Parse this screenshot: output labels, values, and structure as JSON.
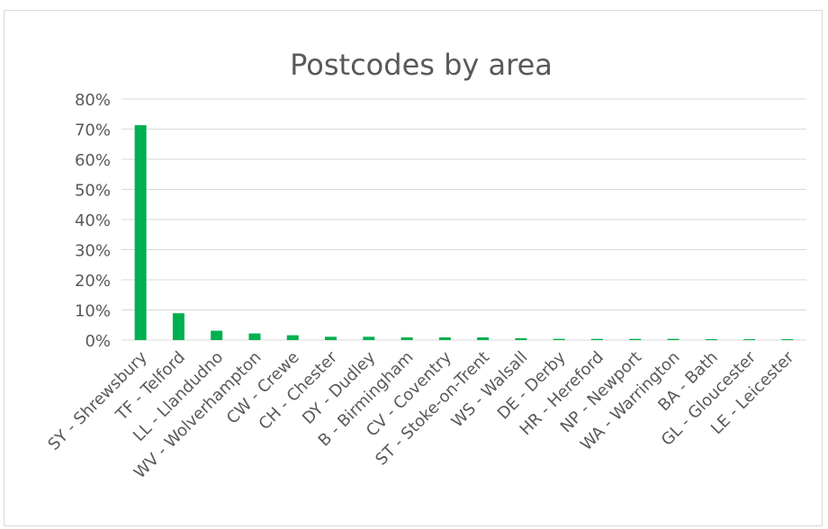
{
  "chart_data": {
    "type": "bar",
    "title": "Postcodes by area",
    "xlabel": "",
    "ylabel": "",
    "ylim": [
      0,
      80
    ],
    "yticks": [
      "0%",
      "10%",
      "20%",
      "30%",
      "40%",
      "50%",
      "60%",
      "70%",
      "80%"
    ],
    "grid": true,
    "legend": "none",
    "bar_color": "#00b050",
    "categories": [
      "SY - Shrewsbury",
      "TF - Telford",
      "LL - Llandudno",
      "WV - Wolverhampton",
      "CW - Crewe",
      "CH - Chester",
      "DY - Dudley",
      "B - Birmingham",
      "CV - Coventry",
      "ST - Stoke-on-Trent",
      "WS - Walsall",
      "DE - Derby",
      "HR - Hereford",
      "NP - Newport",
      "WA - Warrington",
      "BA - Bath",
      "GL - Gloucester",
      "LE - Leicester"
    ],
    "values": [
      71.3,
      8.9,
      3.1,
      2.2,
      1.6,
      1.1,
      1.1,
      0.9,
      0.9,
      0.9,
      0.6,
      0.4,
      0.4,
      0.4,
      0.4,
      0.3,
      0.3,
      0.3
    ]
  }
}
